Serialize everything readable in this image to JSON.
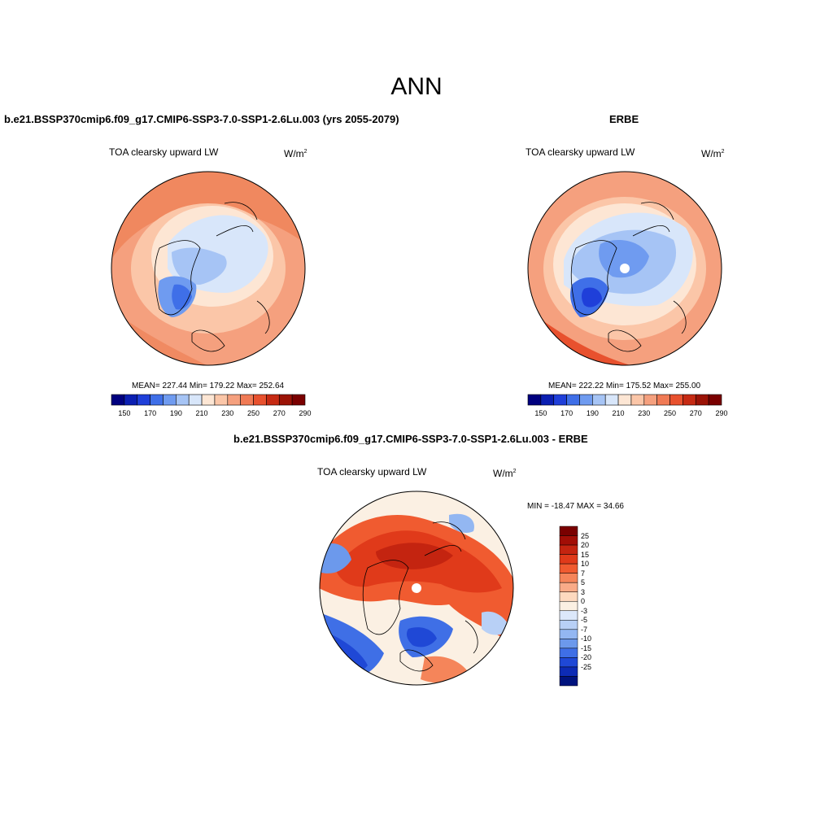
{
  "title": "ANN",
  "panels": [
    {
      "title": "b.e21.BSSP370cmip6.f09_g17.CMIP6-SSP3-7.0-SSP1-2.6Lu.003 (yrs 2055-2079)",
      "variable": "TOA clearsky upward LW",
      "units": "W/m",
      "units_exp": "2",
      "stats": "MEAN= 227.44  Min= 179.22  Max= 252.64"
    },
    {
      "title": "ERBE",
      "variable": "TOA clearsky upward LW",
      "units": "W/m",
      "units_exp": "2",
      "stats": "MEAN= 222.22  Min= 175.52  Max= 255.00"
    },
    {
      "title": "b.e21.BSSP370cmip6.f09_g17.CMIP6-SSP3-7.0-SSP1-2.6Lu.003 - ERBE",
      "variable": "TOA clearsky upward LW",
      "units": "W/m",
      "units_exp": "2",
      "stats": "MIN = -18.47 MAX =  34.66"
    }
  ],
  "abs_colorbar": {
    "colors": [
      "#00007f",
      "#0b1fb2",
      "#1f3fd9",
      "#3f6fe8",
      "#6f9bf0",
      "#a6c4f5",
      "#d8e6fa",
      "#fde6d4",
      "#fbc6a8",
      "#f5a07e",
      "#f07a55",
      "#e8512e",
      "#c62a13",
      "#9b1306",
      "#7a0000"
    ],
    "labels": [
      "150",
      "170",
      "190",
      "210",
      "230",
      "250",
      "270",
      "290"
    ]
  },
  "diff_colorbar": {
    "colors": [
      "#7a0000",
      "#a20e06",
      "#c42410",
      "#e03a1a",
      "#f05b30",
      "#f5855a",
      "#f9ab88",
      "#fdd9bf",
      "#fbf0e3",
      "#dce8fa",
      "#b8d0f6",
      "#93b7f2",
      "#6c99ec",
      "#3f6fe6",
      "#1f48d6",
      "#0d2bb5",
      "#00137e"
    ],
    "labels": [
      "25",
      "20",
      "15",
      "10",
      "7",
      "5",
      "3",
      "0",
      "-3",
      "-5",
      "-7",
      "-10",
      "-15",
      "-20",
      "-25"
    ]
  },
  "colors": {
    "warm": "#f5a07e",
    "warm_light": "#fbc6a8",
    "cool": "#d8e6fa",
    "cool_mid": "#a6c4f5",
    "cool_dark": "#3f6fe8",
    "diff_red": "#e8512e",
    "diff_dark_red": "#c62a13",
    "diff_blue": "#3f6fe6"
  }
}
